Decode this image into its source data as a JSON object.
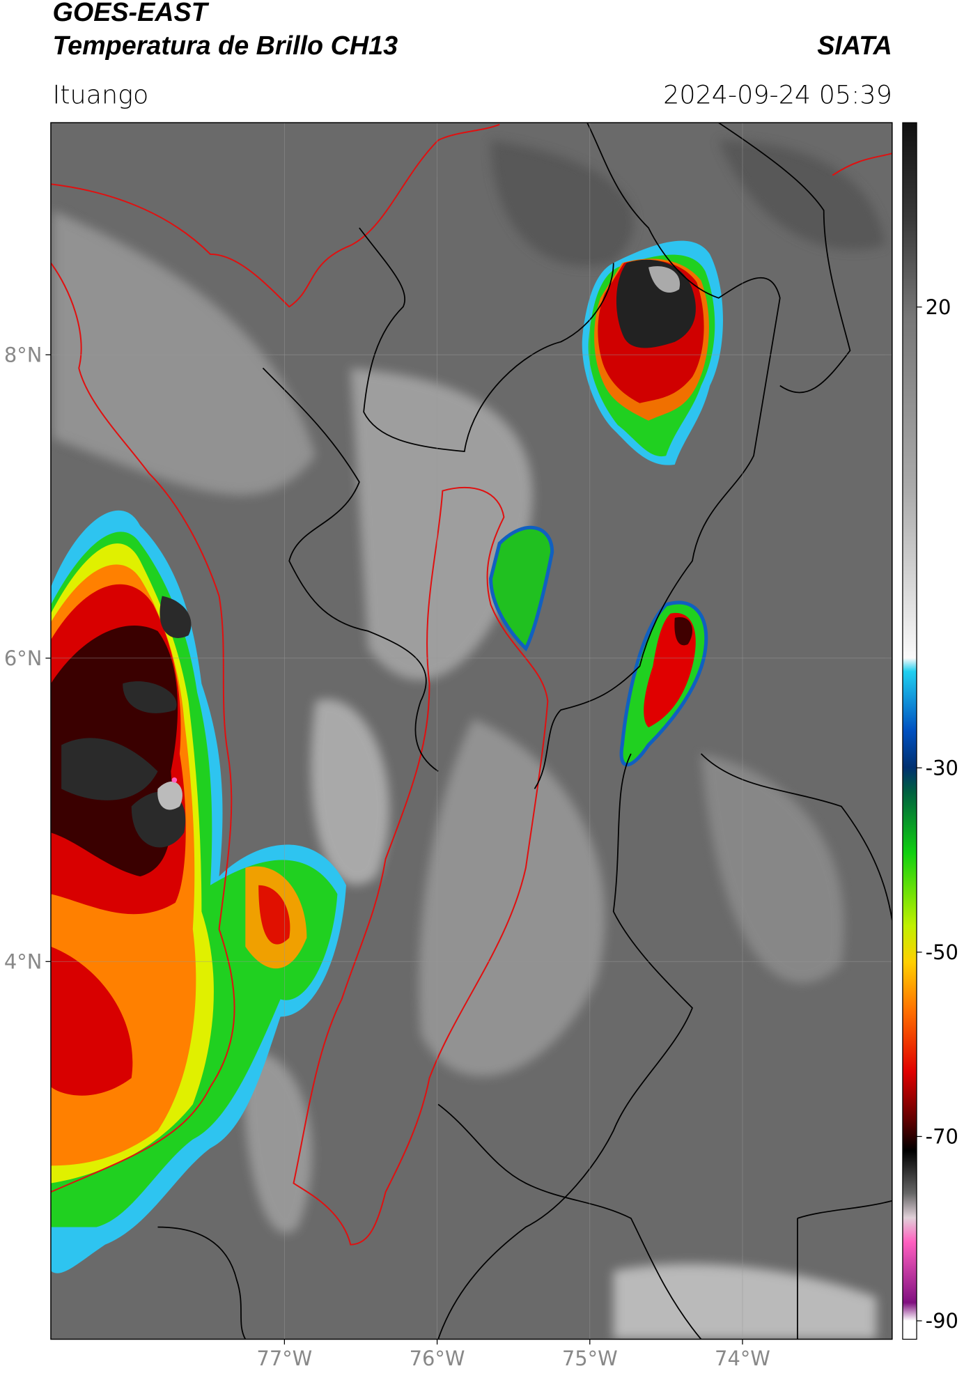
{
  "header": {
    "title_line1": "GOES-EAST",
    "title_line2": "Temperatura de Brillo CH13",
    "brand": "SIATA",
    "location": "Ituango",
    "datetime": "2024-09-24 05:39"
  },
  "map": {
    "xlim": [
      -78.53,
      -73.02
    ],
    "ylim": [
      1.51,
      9.53
    ],
    "xticks": [
      {
        "value": -77,
        "label": "77°W"
      },
      {
        "value": -76,
        "label": "76°W"
      },
      {
        "value": -75,
        "label": "75°W"
      },
      {
        "value": -74,
        "label": "74°W"
      }
    ],
    "yticks": [
      {
        "value": 8,
        "label": "8°N"
      },
      {
        "value": 6,
        "label": "6°N"
      },
      {
        "value": 4,
        "label": "4°N"
      }
    ],
    "grid": true
  },
  "colorbar": {
    "lim": [
      -92,
      40
    ],
    "ticks": [
      20,
      -30,
      -50,
      -70,
      -90
    ]
  }
}
